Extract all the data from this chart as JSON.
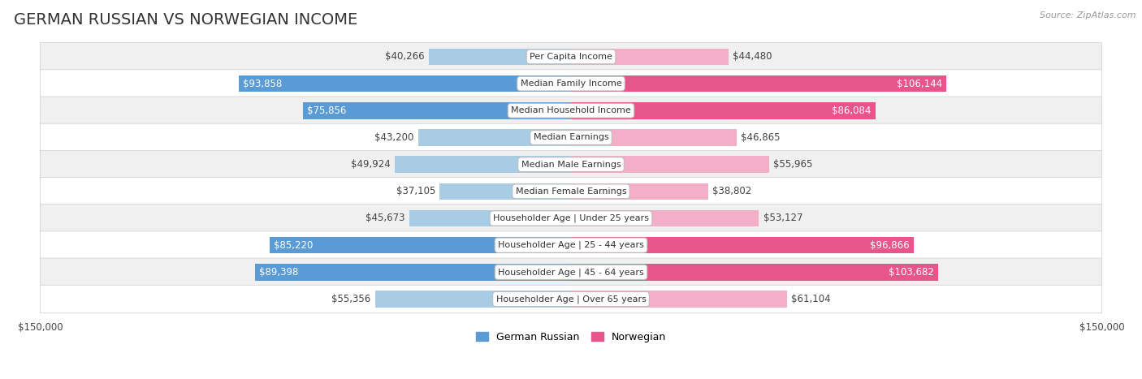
{
  "title": "GERMAN RUSSIAN VS NORWEGIAN INCOME",
  "source": "Source: ZipAtlas.com",
  "categories": [
    "Per Capita Income",
    "Median Family Income",
    "Median Household Income",
    "Median Earnings",
    "Median Male Earnings",
    "Median Female Earnings",
    "Householder Age | Under 25 years",
    "Householder Age | 25 - 44 years",
    "Householder Age | 45 - 64 years",
    "Householder Age | Over 65 years"
  ],
  "german_russian": [
    40266,
    93858,
    75856,
    43200,
    49924,
    37105,
    45673,
    85220,
    89398,
    55356
  ],
  "norwegian": [
    44480,
    106144,
    86084,
    46865,
    55965,
    38802,
    53127,
    96866,
    103682,
    61104
  ],
  "color_german_light": "#a8cce4",
  "color_german_dark": "#5b9bd5",
  "color_norwegian_light": "#f4afc8",
  "color_norwegian_dark": "#e8558a",
  "bg_odd": "#f0f0f0",
  "bg_even": "#ffffff",
  "bar_height": 0.62,
  "xlim": 150000,
  "inside_threshold": 0.45,
  "label_fontsize": 8.5,
  "category_fontsize": 8.0,
  "title_fontsize": 14,
  "tick_fontsize": 8.5,
  "legend_fontsize": 9
}
